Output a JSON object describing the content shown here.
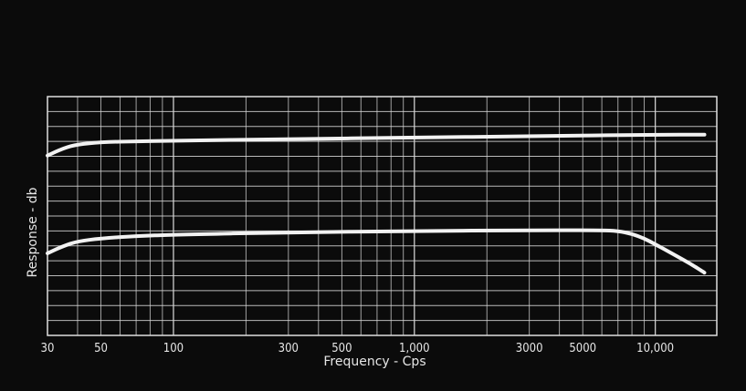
{
  "chart_data": {
    "type": "line",
    "title": "",
    "xlabel": "Frequency - Cps",
    "ylabel": "Response - db",
    "x_scale": "log",
    "xlim": [
      30,
      18000
    ],
    "x_ticks": [
      30,
      50,
      100,
      300,
      500,
      1000,
      3000,
      5000,
      10000
    ],
    "x_tick_labels": [
      "30",
      "50",
      "100",
      "300",
      "500",
      "1,000",
      "3000",
      "5000",
      "10,000"
    ],
    "y_tick_labels": [],
    "grid": true,
    "legend": "none",
    "series": [
      {
        "x": [
          30,
          35,
          40,
          50,
          70,
          100,
          300,
          1000,
          3000,
          10000,
          16000
        ],
        "y": [
          1.05,
          1.55,
          1.8,
          1.95,
          2.0,
          2.05,
          2.15,
          2.25,
          2.35,
          2.45,
          2.45
        ]
      },
      {
        "x": [
          30,
          35,
          40,
          50,
          70,
          100,
          300,
          1000,
          3000,
          6000,
          7000,
          8000,
          9000,
          10000,
          12000,
          14000,
          16000
        ],
        "y": [
          -5.5,
          -5.0,
          -4.7,
          -4.5,
          -4.35,
          -4.25,
          -4.1,
          -4.0,
          -3.95,
          -3.95,
          -4.0,
          -4.2,
          -4.5,
          -4.9,
          -5.6,
          -6.2,
          -6.8
        ]
      }
    ],
    "ylim": [
      -11,
      5
    ],
    "colors": {
      "background": "#0b0b0b",
      "grid": "#d8d8d8",
      "curve": "#f2f2f2",
      "text": "#e6e6e6"
    }
  }
}
